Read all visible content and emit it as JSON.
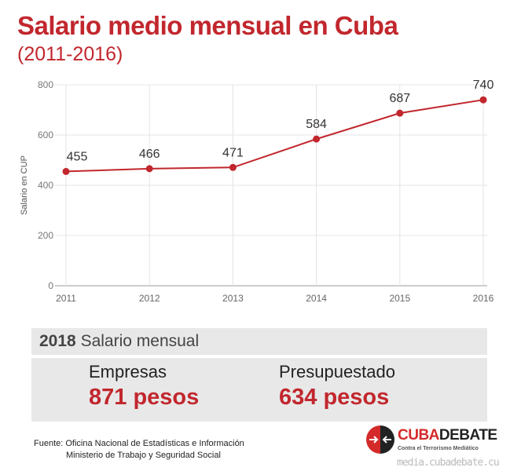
{
  "title": "Salario medio mensual en Cuba",
  "subtitle": "(2011-2016)",
  "chart_data": {
    "type": "line",
    "title": "Salario medio mensual en Cuba",
    "subtitle": "(2011-2016)",
    "ylabel": "Salario en CUP",
    "xlabel": "",
    "categories": [
      "2011",
      "2012",
      "2013",
      "2014",
      "2015",
      "2016"
    ],
    "values": [
      455,
      466,
      471,
      584,
      687,
      740
    ],
    "ylim": [
      0,
      800
    ],
    "yticks": [
      0,
      200,
      400,
      600,
      800
    ],
    "grid": true,
    "color": "#c1272d"
  },
  "summary": {
    "year": "2018",
    "heading": "Salario mensual",
    "items": [
      {
        "label": "Empresas",
        "value": "871 pesos"
      },
      {
        "label": "Presupuestado",
        "value": "634 pesos"
      }
    ]
  },
  "source": {
    "line1": "Fuente: Oficina Nacional de Estadísticas e Información",
    "line2": "Ministerio de Trabajo y Seguridad Social"
  },
  "logo": {
    "text_red": "CUBA",
    "text_black": "DEBATE",
    "tagline": "Contra el Terrorismo Mediático"
  },
  "watermark": "media.cubadebate.cu"
}
